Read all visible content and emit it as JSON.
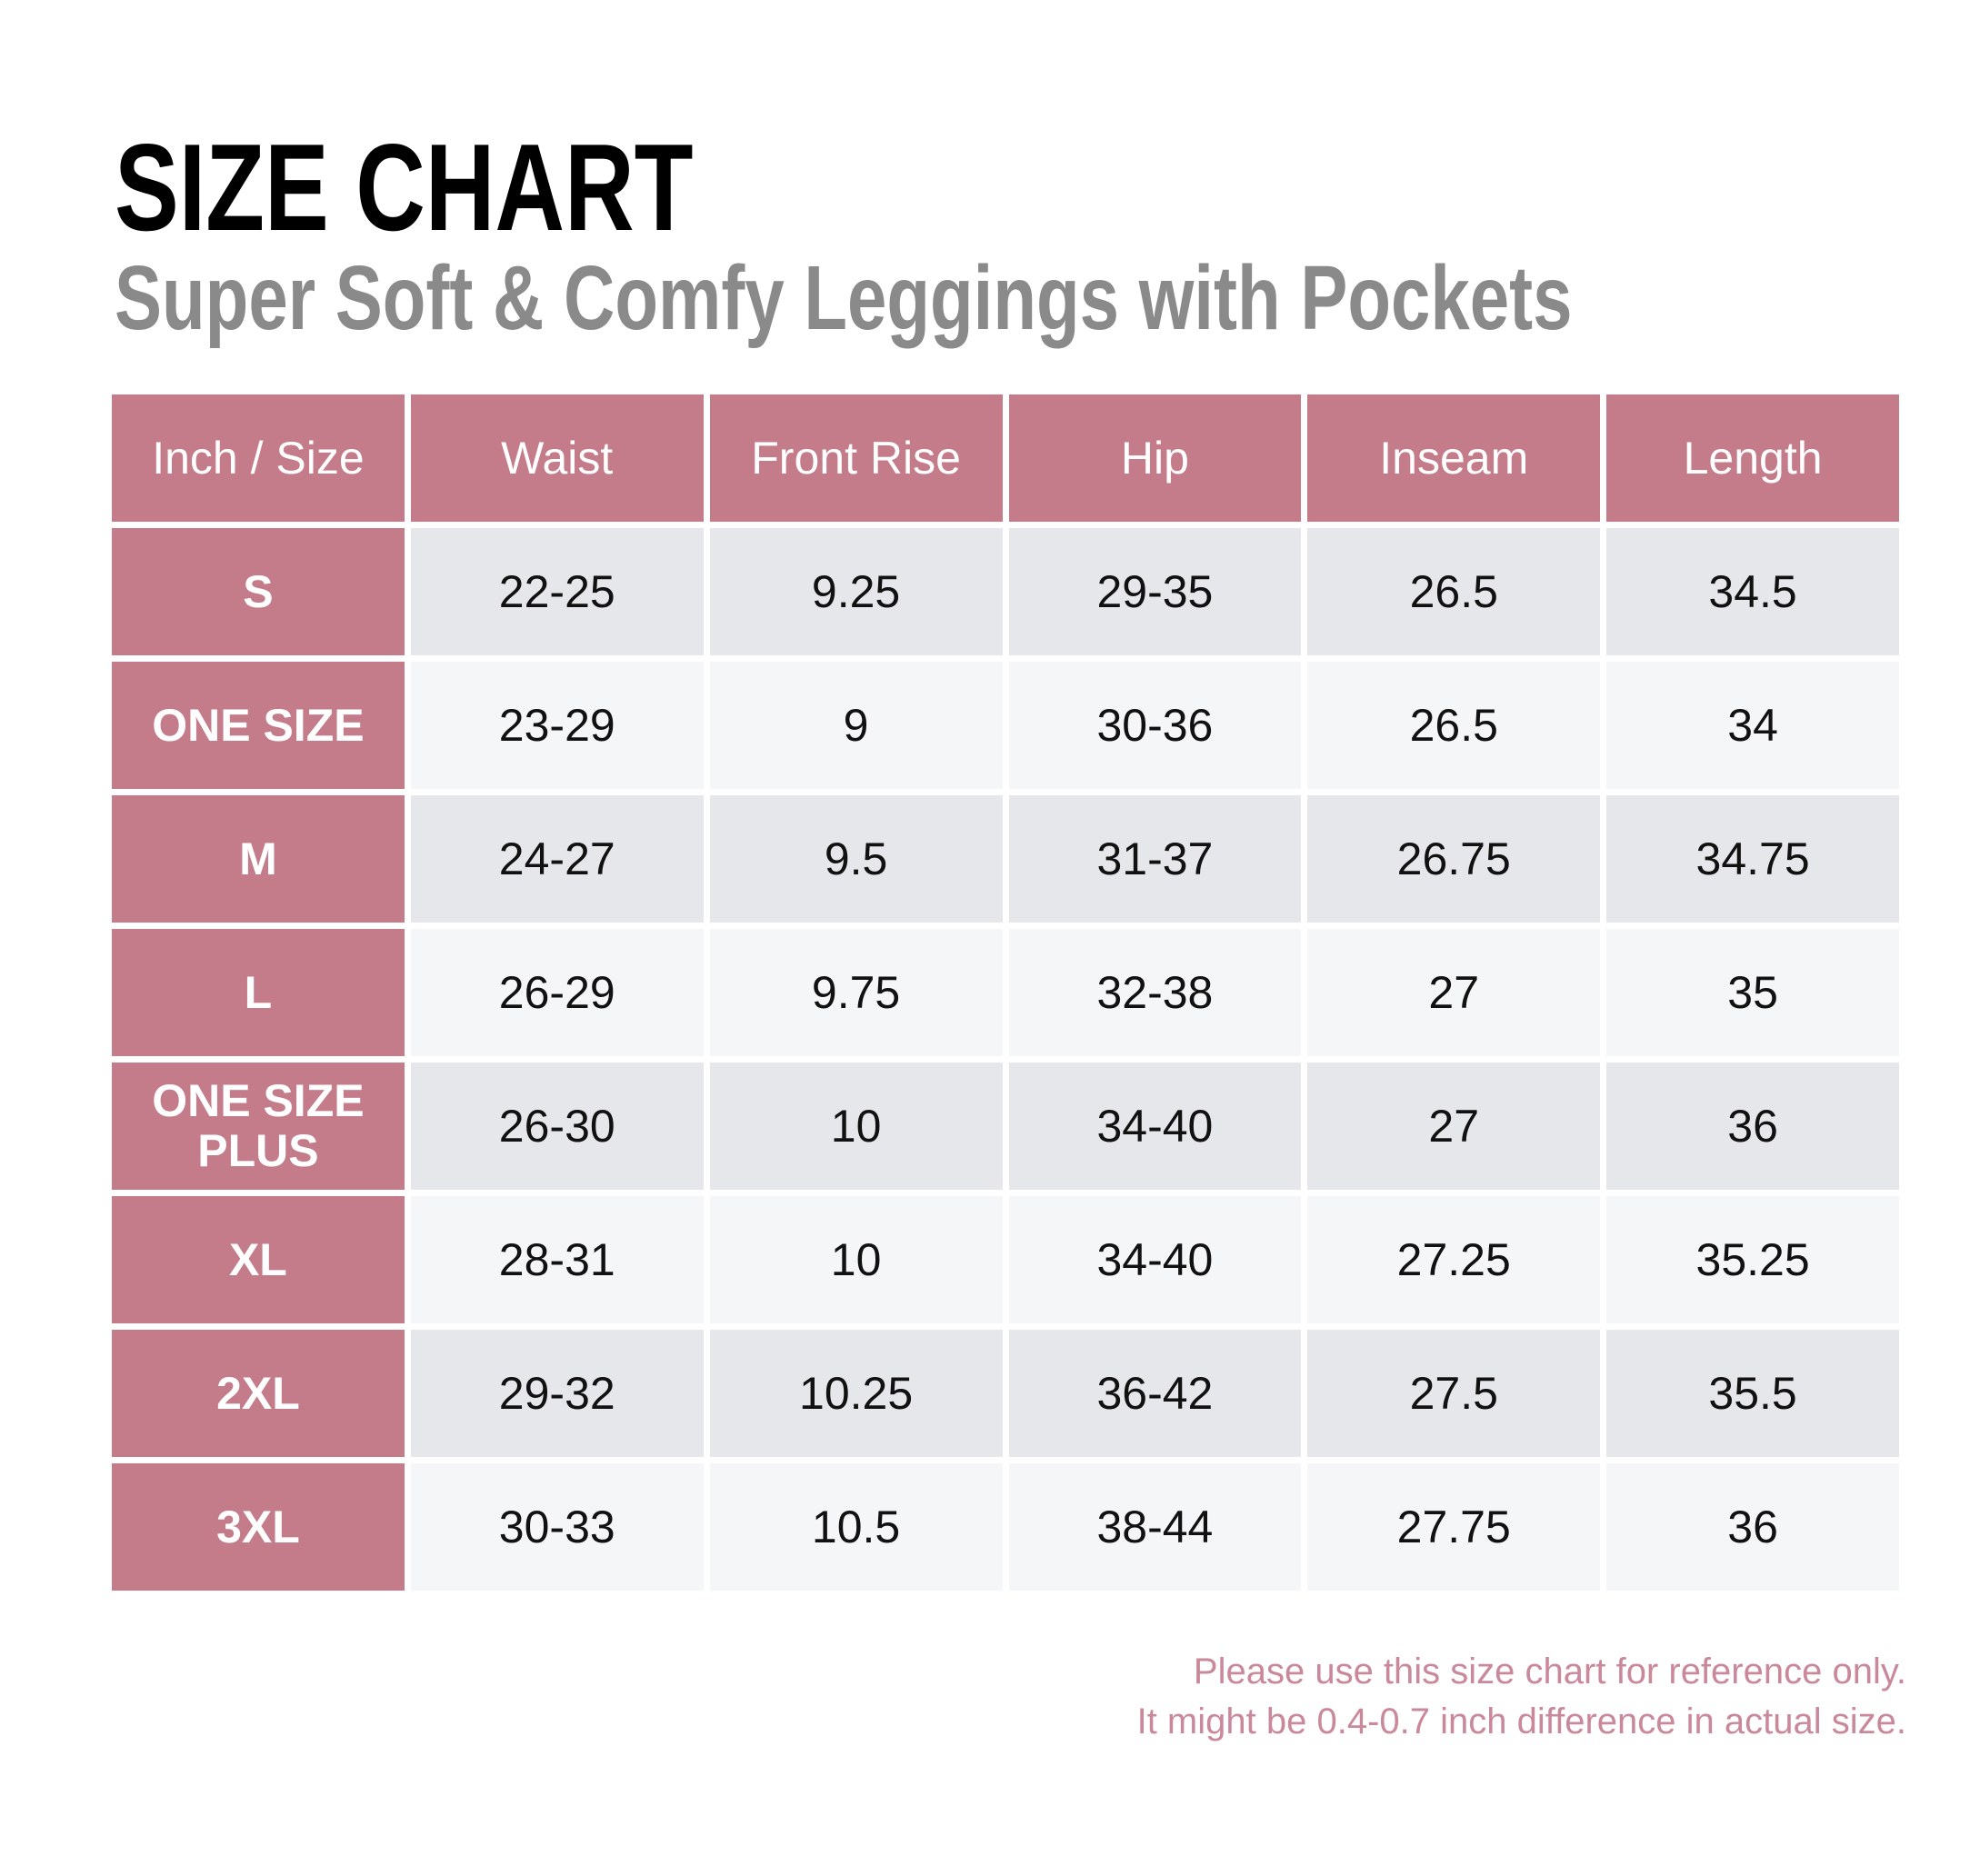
{
  "header": {
    "title": "SIZE CHART",
    "subtitle": "Super Soft & Comfy Leggings with Pockets"
  },
  "table": {
    "columns": [
      "Inch / Size",
      "Waist",
      "Front Rise",
      "Hip",
      "Inseam",
      "Length"
    ],
    "rows": [
      [
        "S",
        "22-25",
        "9.25",
        "29-35",
        "26.5",
        "34.5"
      ],
      [
        "ONE SIZE",
        "23-29",
        "9",
        "30-36",
        "26.5",
        "34"
      ],
      [
        "M",
        "24-27",
        "9.5",
        "31-37",
        "26.75",
        "34.75"
      ],
      [
        "L",
        "26-29",
        "9.75",
        "32-38",
        "27",
        "35"
      ],
      [
        "ONE SIZE PLUS",
        "26-30",
        "10",
        "34-40",
        "27",
        "36"
      ],
      [
        "XL",
        "28-31",
        "10",
        "34-40",
        "27.25",
        "35.25"
      ],
      [
        "2XL",
        "29-32",
        "10.25",
        "36-42",
        "27.5",
        "35.5"
      ],
      [
        "3XL",
        "30-33",
        "10.5",
        "38-44",
        "27.75",
        "36"
      ]
    ]
  },
  "footer": {
    "lines": [
      "Please use this size chart for reference only.",
      "It might be 0.4-0.7 inch difference in actual size."
    ]
  }
}
